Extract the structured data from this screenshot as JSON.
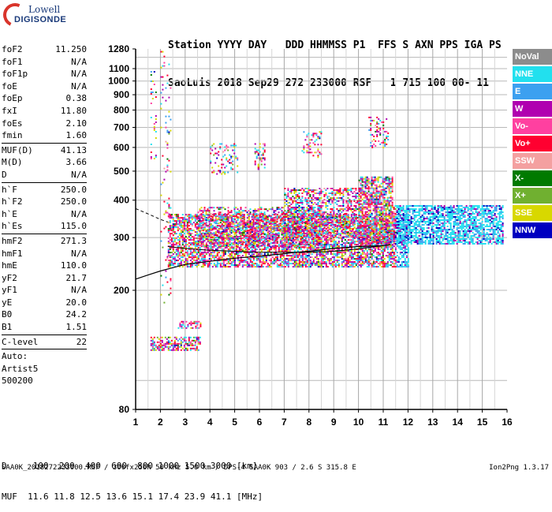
{
  "logo": {
    "line1": "Lowell",
    "line2": "DIGISONDE"
  },
  "header": {
    "line1": "Station YYYY DAY   DDD HHMMSS P1  FFS S AXN PPS IGA PS",
    "line2": "SaoLuis 2018 Sep29 272 233000 RSF   1 715 100 00- 11"
  },
  "params": {
    "group1": [
      {
        "label": "foF2",
        "value": "11.250"
      },
      {
        "label": "foF1",
        "value": "N/A"
      },
      {
        "label": "foF1p",
        "value": "N/A"
      },
      {
        "label": "foE",
        "value": "N/A"
      },
      {
        "label": "foEp",
        "value": "0.38"
      },
      {
        "label": "fxI",
        "value": "11.80"
      },
      {
        "label": "foEs",
        "value": "2.10"
      },
      {
        "label": "fmin",
        "value": "1.60"
      }
    ],
    "group2": [
      {
        "label": "MUF(D)",
        "value": "41.13"
      },
      {
        "label": "M(D)",
        "value": "3.66"
      },
      {
        "label": "D",
        "value": "N/A"
      }
    ],
    "group3": [
      {
        "label": "h`F",
        "value": "250.0"
      },
      {
        "label": "h`F2",
        "value": "250.0"
      },
      {
        "label": "h`E",
        "value": "N/A"
      },
      {
        "label": "h`Es",
        "value": "115.0"
      }
    ],
    "group4": [
      {
        "label": "hmF2",
        "value": "271.3"
      },
      {
        "label": "hmF1",
        "value": "N/A"
      },
      {
        "label": "hmE",
        "value": "110.0"
      },
      {
        "label": "yF2",
        "value": "21.7"
      },
      {
        "label": "yF1",
        "value": "N/A"
      },
      {
        "label": "yE",
        "value": "20.0"
      },
      {
        "label": "B0",
        "value": "24.2"
      },
      {
        "label": "B1",
        "value": "1.51"
      }
    ],
    "group5": [
      {
        "label": "C-level",
        "value": "22"
      }
    ],
    "auto": [
      "Auto:",
      "Artist5",
      "500200"
    ]
  },
  "legend": [
    {
      "label": "NoVal",
      "color": "#8c8c8c"
    },
    {
      "label": "NNE",
      "color": "#22e0ee"
    },
    {
      "label": "E",
      "color": "#3ca0f0"
    },
    {
      "label": "W",
      "color": "#b000b0"
    },
    {
      "label": "Vo-",
      "color": "#ff40a0"
    },
    {
      "label": "Vo+",
      "color": "#ff0030"
    },
    {
      "label": "SSW",
      "color": "#f4a0a0"
    },
    {
      "label": "X-",
      "color": "#007a00"
    },
    {
      "label": "X+",
      "color": "#70b030"
    },
    {
      "label": "SSE",
      "color": "#d8d800"
    },
    {
      "label": "NNW",
      "color": "#0000c0"
    }
  ],
  "chart_data": {
    "type": "scatter",
    "title": "",
    "xlabel": "",
    "ylabel": "",
    "xlim": [
      1,
      16
    ],
    "xticks": [
      1,
      2,
      3,
      4,
      5,
      6,
      7,
      8,
      9,
      10,
      11,
      12,
      13,
      14,
      15,
      16
    ],
    "ylim": [
      80,
      1280
    ],
    "ylog": true,
    "yticks": [
      80,
      200,
      300,
      400,
      500,
      600,
      700,
      800,
      900,
      1000,
      1100,
      1280
    ],
    "grid": true,
    "legend_position": "right",
    "trace": {
      "x": [
        1,
        1.5,
        2,
        2.5,
        3,
        4,
        5,
        6,
        7,
        7.5,
        8,
        9,
        10,
        11,
        11.3
      ],
      "y": [
        218,
        225,
        232,
        238,
        244,
        250,
        256,
        260,
        265,
        268,
        270,
        276,
        280,
        282,
        284
      ]
    },
    "dashed_line": {
      "x": [
        1,
        1.5,
        2,
        2.3
      ],
      "y": [
        375,
        360,
        345,
        338
      ]
    },
    "line2": {
      "x": [
        2.3,
        3,
        4,
        5,
        6,
        7,
        8,
        9,
        10,
        11
      ],
      "y": [
        280,
        276,
        272,
        270,
        268,
        268,
        268,
        270,
        275,
        282
      ]
    },
    "regions": [
      {
        "x0": 2.3,
        "x1": 12.0,
        "y0": 240,
        "y1": 360,
        "density": 0.65
      },
      {
        "x0": 3.5,
        "x1": 8.5,
        "y0": 280,
        "y1": 380,
        "density": 0.45
      },
      {
        "x0": 10.0,
        "x1": 11.4,
        "y0": 280,
        "y1": 480,
        "density": 0.7
      },
      {
        "x0": 7.0,
        "x1": 10.0,
        "y0": 300,
        "y1": 440,
        "density": 0.45
      },
      {
        "x0": 11.4,
        "x1": 15.8,
        "y0": 285,
        "y1": 385,
        "density": 0.65
      },
      {
        "x0": 4.0,
        "x1": 5.1,
        "y0": 490,
        "y1": 620,
        "density": 0.25
      },
      {
        "x0": 5.8,
        "x1": 6.2,
        "y0": 510,
        "y1": 620,
        "density": 0.25
      },
      {
        "x0": 7.7,
        "x1": 8.5,
        "y0": 560,
        "y1": 680,
        "density": 0.25
      },
      {
        "x0": 10.4,
        "x1": 11.2,
        "y0": 600,
        "y1": 760,
        "density": 0.25
      },
      {
        "x0": 1.6,
        "x1": 1.8,
        "y0": 520,
        "y1": 1080,
        "density": 0.12
      },
      {
        "x0": 2.0,
        "x1": 2.4,
        "y0": 180,
        "y1": 1260,
        "density": 0.08
      },
      {
        "x0": 1.6,
        "x1": 3.6,
        "y0": 126,
        "y1": 140,
        "density": 0.55
      },
      {
        "x0": 2.7,
        "x1": 3.6,
        "y0": 150,
        "y1": 158,
        "density": 0.45
      }
    ]
  },
  "footer": {
    "dist": "D     100  200  400  600  800 1000 1500 3000 [km]",
    "muf": "MUF  11.6 11.8 12.5 13.6 15.1 17.4 23.9 41.1 [MHz]",
    "line": "SAA0K_2018272233000.RSF / 300fx256h 50 kHz 5.0 km / DPS-4 SAA0K 903 / 2.6 S 315.8 E",
    "version": "Ion2Png 1.3.17"
  }
}
